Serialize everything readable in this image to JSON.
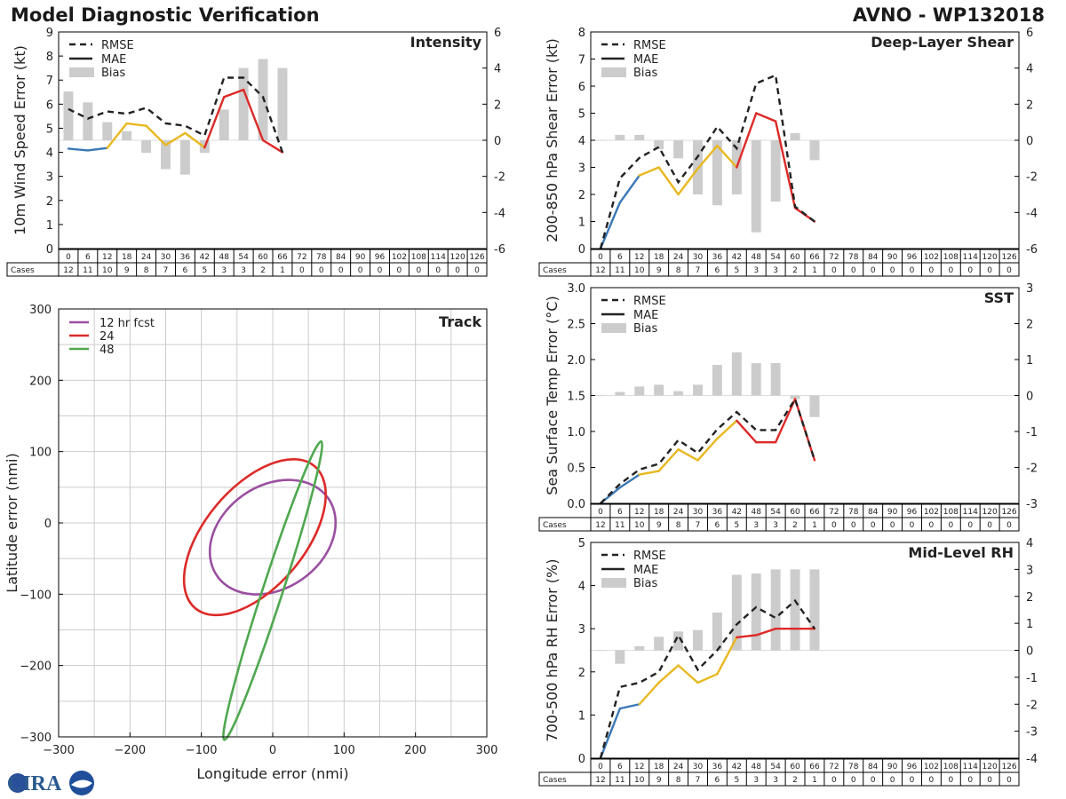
{
  "header": {
    "title": "Model Diagnostic Verification",
    "storm": "AVNO - WP132018"
  },
  "logo": {
    "text": "CIRA"
  },
  "colors": {
    "rmse": "#222222",
    "bias": "#cccccc",
    "seg_blue": "#3a78b6",
    "seg_yellow": "#e8b820",
    "seg_red": "#dd2a28",
    "track_12": "#9a4fa0",
    "track_24": "#dd2a28",
    "track_48": "#4fa84f",
    "grid": "#cccccc",
    "axis": "#000000"
  },
  "legend": {
    "rmse": "RMSE",
    "mae": "MAE",
    "bias": "Bias"
  },
  "cases_label": "Cases",
  "chart_data": [
    {
      "id": "intensity",
      "type": "line",
      "title": "Intensity",
      "ylabel": "10m Wind Speed Error (kt)",
      "ylim": [
        0,
        9
      ],
      "yticks": [
        0,
        1,
        2,
        3,
        4,
        5,
        6,
        7,
        8,
        9
      ],
      "y2lim": [
        -6,
        6
      ],
      "y2ticks": [
        -6,
        -4,
        -2,
        0,
        2,
        4,
        6
      ],
      "lead_times": [
        0,
        6,
        12,
        18,
        24,
        30,
        36,
        42,
        48,
        54,
        60,
        66,
        72,
        78,
        84,
        90,
        96,
        102,
        108,
        114,
        120,
        126
      ],
      "cases": [
        12,
        11,
        10,
        9,
        8,
        7,
        6,
        5,
        3,
        3,
        2,
        1,
        0,
        0,
        0,
        0,
        0,
        0,
        0,
        0,
        0,
        0
      ],
      "rmse": [
        5.8,
        5.4,
        5.7,
        5.6,
        5.85,
        5.2,
        5.1,
        4.7,
        7.1,
        7.1,
        6.3,
        4.0
      ],
      "mae": [
        4.15,
        4.08,
        4.18,
        5.2,
        5.1,
        4.3,
        4.8,
        4.2,
        6.3,
        6.6,
        4.5,
        4.0
      ],
      "bias": [
        2.7,
        2.1,
        1.0,
        0.5,
        -0.7,
        -1.6,
        -1.9,
        -0.7,
        1.7,
        4.0,
        4.5,
        4.0
      ]
    },
    {
      "id": "shear",
      "type": "line",
      "title": "Deep-Layer Shear",
      "ylabel": "200-850 hPa Shear Error (kt)",
      "ylim": [
        0,
        8
      ],
      "yticks": [
        0,
        1,
        2,
        3,
        4,
        5,
        6,
        7,
        8
      ],
      "y2lim": [
        -6,
        6
      ],
      "y2ticks": [
        -6,
        -4,
        -2,
        0,
        2,
        4,
        6
      ],
      "lead_times": [
        0,
        6,
        12,
        18,
        24,
        30,
        36,
        42,
        48,
        54,
        60,
        66,
        72,
        78,
        84,
        90,
        96,
        102,
        108,
        114,
        120,
        126
      ],
      "cases": [
        12,
        11,
        10,
        9,
        8,
        7,
        6,
        5,
        3,
        3,
        2,
        1,
        0,
        0,
        0,
        0,
        0,
        0,
        0,
        0,
        0,
        0
      ],
      "rmse": [
        0.0,
        2.6,
        3.35,
        3.75,
        2.45,
        3.4,
        4.5,
        3.7,
        6.1,
        6.4,
        1.55,
        1.0
      ],
      "mae": [
        0.0,
        1.7,
        2.7,
        3.0,
        2.0,
        2.95,
        3.8,
        3.0,
        5.0,
        4.7,
        1.5,
        1.0
      ],
      "bias": [
        0.0,
        0.3,
        0.3,
        -0.5,
        -1.0,
        -3.0,
        -3.6,
        -3.0,
        -5.1,
        -3.4,
        0.4,
        -1.1
      ]
    },
    {
      "id": "sst",
      "type": "line",
      "title": "SST",
      "ylabel": "Sea Surface Temp Error (°C)",
      "ylim": [
        0,
        3.0
      ],
      "yticks": [
        0.0,
        0.5,
        1.0,
        1.5,
        2.0,
        2.5,
        3.0
      ],
      "y2lim": [
        -3,
        3
      ],
      "y2ticks": [
        -3,
        -2,
        -1,
        0,
        1,
        2,
        3
      ],
      "lead_times": [
        0,
        6,
        12,
        18,
        24,
        30,
        36,
        42,
        48,
        54,
        60,
        66,
        72,
        78,
        84,
        90,
        96,
        102,
        108,
        114,
        120,
        126
      ],
      "cases": [
        12,
        11,
        10,
        9,
        8,
        7,
        6,
        5,
        3,
        3,
        2,
        1,
        0,
        0,
        0,
        0,
        0,
        0,
        0,
        0,
        0,
        0
      ],
      "rmse": [
        0.0,
        0.27,
        0.47,
        0.55,
        0.88,
        0.7,
        1.03,
        1.27,
        1.02,
        1.02,
        1.45,
        0.6
      ],
      "mae": [
        0.0,
        0.22,
        0.4,
        0.45,
        0.75,
        0.6,
        0.9,
        1.15,
        0.85,
        0.85,
        1.45,
        0.6
      ],
      "bias": [
        0.0,
        0.1,
        0.25,
        0.3,
        0.12,
        0.3,
        0.85,
        1.2,
        0.9,
        0.9,
        -0.1,
        -0.6
      ]
    },
    {
      "id": "rh",
      "type": "line",
      "title": "Mid-Level RH",
      "ylabel": "700-500 hPa RH Error (%)",
      "ylim": [
        0,
        5
      ],
      "yticks": [
        0,
        1,
        2,
        3,
        4,
        5
      ],
      "y2lim": [
        -4,
        4
      ],
      "y2ticks": [
        -4,
        -3,
        -2,
        -1,
        0,
        1,
        2,
        3,
        4
      ],
      "lead_times": [
        0,
        6,
        12,
        18,
        24,
        30,
        36,
        42,
        48,
        54,
        60,
        66,
        72,
        78,
        84,
        90,
        96,
        102,
        108,
        114,
        120,
        126
      ],
      "cases": [
        12,
        11,
        10,
        9,
        8,
        7,
        6,
        5,
        3,
        3,
        2,
        1,
        0,
        0,
        0,
        0,
        0,
        0,
        0,
        0,
        0,
        0
      ],
      "rmse": [
        0.0,
        1.65,
        1.75,
        2.0,
        2.85,
        2.05,
        2.5,
        3.1,
        3.5,
        3.25,
        3.65,
        3.0
      ],
      "mae": [
        0.0,
        1.15,
        1.25,
        1.75,
        2.15,
        1.75,
        1.95,
        2.8,
        2.85,
        3.0,
        3.0,
        3.0
      ],
      "bias": [
        0.0,
        -0.5,
        0.15,
        0.5,
        0.7,
        0.75,
        1.4,
        2.8,
        2.85,
        3.0,
        3.0,
        3.0
      ]
    },
    {
      "id": "track",
      "type": "scatter",
      "title": "Track",
      "xlabel": "Longitude error (nmi)",
      "ylabel": "Latitude error (nmi)",
      "xlim": [
        -300,
        300
      ],
      "ylim": [
        -300,
        300
      ],
      "xticks": [
        -300,
        -200,
        -100,
        0,
        100,
        200,
        300
      ],
      "yticks": [
        -300,
        -200,
        -100,
        0,
        100,
        200,
        300
      ],
      "ellipses": [
        {
          "label": "12 hr fcst",
          "cx": 0,
          "cy": -20,
          "rx": 95,
          "ry": 72,
          "angle_deg": 35
        },
        {
          "label": "24",
          "cx": -25,
          "cy": -20,
          "rx": 130,
          "ry": 70,
          "angle_deg": 50
        },
        {
          "label": "48",
          "cx": 0,
          "cy": -95,
          "rx": 220,
          "ry": 14,
          "angle_deg": 72
        }
      ]
    }
  ]
}
